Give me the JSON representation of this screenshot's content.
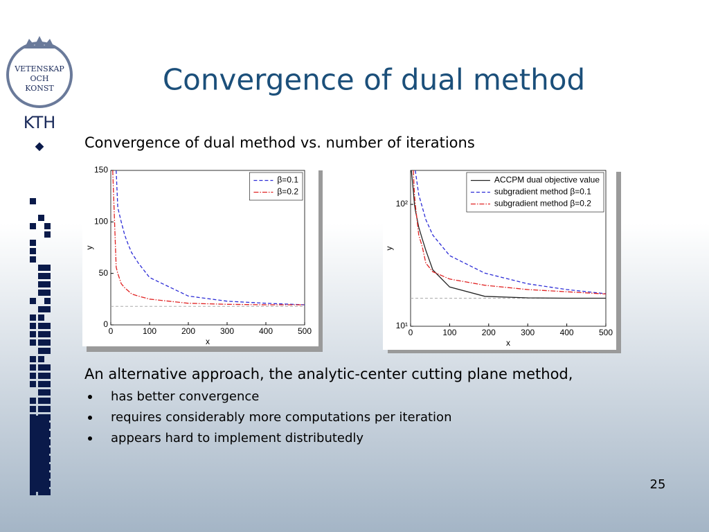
{
  "header": {
    "logo": [
      "VETENSKAP",
      "OCH",
      "KONST",
      "KTH"
    ],
    "title": "Convergence of dual method"
  },
  "subtitle": "Convergence of dual method vs. number of iterations",
  "chart_data": [
    {
      "type": "line",
      "xlabel": "x",
      "ylabel": "y",
      "x": [
        5,
        14,
        18,
        27,
        36,
        45,
        54,
        71,
        100,
        200,
        300,
        400,
        500
      ],
      "series": [
        {
          "name": "β=0.1",
          "color": "#2b2bd6",
          "dash": "dashed",
          "values": [
            null,
            150,
            114,
            100,
            87,
            78,
            70,
            60,
            46,
            28,
            23,
            21,
            19.5
          ]
        },
        {
          "name": "β=0.2",
          "color": "#e02020",
          "dash": "dashdot",
          "values": [
            150,
            56,
            50,
            40,
            36,
            33,
            30,
            28,
            25,
            21,
            20,
            19.5,
            19.5
          ]
        }
      ],
      "reference": 18,
      "xlim": [
        0,
        500
      ],
      "ylim": [
        0,
        150
      ],
      "xticks": [
        0,
        100,
        200,
        300,
        400,
        500
      ],
      "yticks": [
        0,
        50,
        100,
        150
      ],
      "legend": "upper right"
    },
    {
      "type": "line",
      "xlabel": "x",
      "ylabel": "y",
      "log_y": true,
      "x": [
        2,
        7,
        10,
        12,
        21,
        30,
        39,
        57,
        100,
        190,
        300,
        400,
        500
      ],
      "series": [
        {
          "name": "ACCPM dual objective value",
          "color": "#222222",
          "dash": "solid",
          "values": [
            190,
            130,
            100,
            90,
            65,
            52,
            42,
            29,
            21,
            17.6,
            17.1,
            17,
            17
          ]
        },
        {
          "name": "subgradient method β=0.1",
          "color": "#2b2bd6",
          "dash": "dashed",
          "values": [
            null,
            null,
            null,
            190,
            120,
            95,
            75,
            56,
            38,
            27.3,
            22.3,
            20,
            18.5
          ]
        },
        {
          "name": "subgradient method β=0.2",
          "color": "#e02020",
          "dash": "dashdot",
          "values": [
            null,
            190,
            120,
            100,
            56,
            45,
            33,
            28,
            24.4,
            21.7,
            20,
            19.2,
            18.4
          ]
        }
      ],
      "reference": 17,
      "xlim": [
        0,
        500
      ],
      "ylim": [
        10,
        190
      ],
      "xticks": [
        0,
        100,
        200,
        300,
        400,
        500
      ],
      "yticks": [
        {
          "value": 10,
          "label": "10¹"
        },
        {
          "value": 100,
          "label": "10²"
        }
      ],
      "legend": "upper right"
    }
  ],
  "body": {
    "intro": "An alternative approach, the analytic-center cutting plane method,",
    "bullets": [
      "has better convergence",
      "requires considerably more computations per iteration",
      "appears hard to implement distributedly"
    ]
  },
  "page_number": "25"
}
